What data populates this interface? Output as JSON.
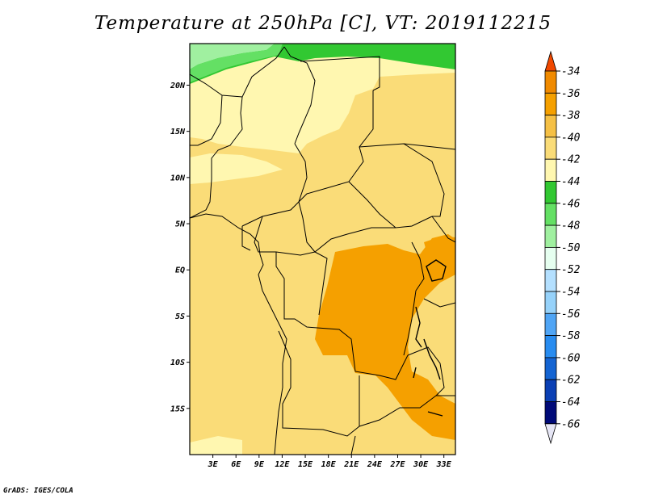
{
  "title": "Temperature at 250hPa [C], VT: 2019112215",
  "credit": "GrADS: IGES/COLA",
  "map": {
    "lon_range": [
      0,
      34.5
    ],
    "lat_range": [
      -20.0,
      24.5
    ],
    "lat_ticks": [
      {
        "value": 20,
        "label": "20N"
      },
      {
        "value": 15,
        "label": "15N"
      },
      {
        "value": 10,
        "label": "10N"
      },
      {
        "value": 5,
        "label": "5N"
      },
      {
        "value": 0,
        "label": "EQ"
      },
      {
        "value": -5,
        "label": "5S"
      },
      {
        "value": -10,
        "label": "10S"
      },
      {
        "value": -15,
        "label": "15S"
      }
    ],
    "lon_ticks": [
      {
        "value": 3,
        "label": "3E"
      },
      {
        "value": 6,
        "label": "6E"
      },
      {
        "value": 9,
        "label": "9E"
      },
      {
        "value": 12,
        "label": "12E"
      },
      {
        "value": 15,
        "label": "15E"
      },
      {
        "value": 18,
        "label": "18E"
      },
      {
        "value": 21,
        "label": "21E"
      },
      {
        "value": 24,
        "label": "24E"
      },
      {
        "value": 27,
        "label": "27E"
      },
      {
        "value": 30,
        "label": "30E"
      },
      {
        "value": 33,
        "label": "33E"
      }
    ]
  },
  "colorbar": {
    "labels": [
      "-34",
      "-36",
      "-38",
      "-40",
      "-42",
      "-44",
      "-46",
      "-48",
      "-50",
      "-52",
      "-54",
      "-56",
      "-58",
      "-60",
      "-62",
      "-64",
      "-66"
    ],
    "colors": [
      "#f04800",
      "#f08a00",
      "#f5a000",
      "#f5c045",
      "#fadc78",
      "#fff7b0",
      "#32c832",
      "#64e064",
      "#a0f0a0",
      "#e6fff0",
      "#b4e0ff",
      "#96d2fa",
      "#50a5f5",
      "#288cf0",
      "#1464d2",
      "#0a3fb4",
      "#000a78",
      "#e6e6f5"
    ]
  }
}
